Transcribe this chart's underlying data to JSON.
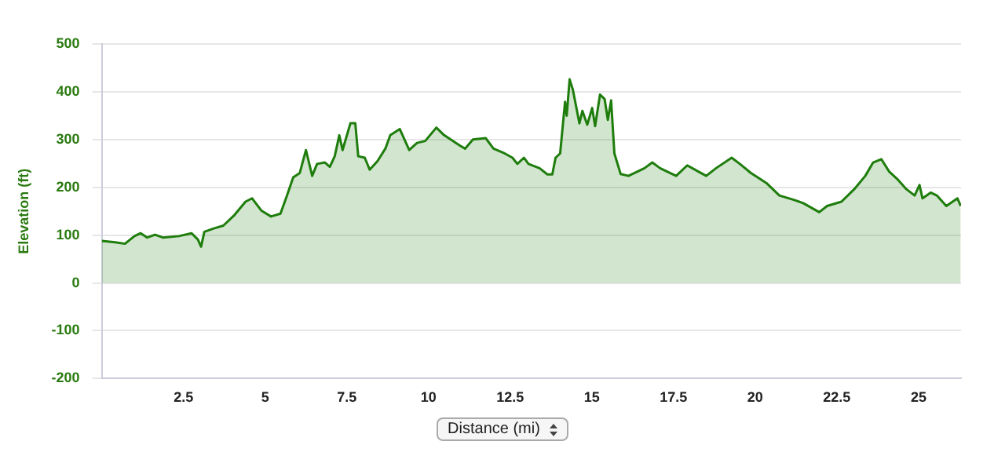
{
  "chart_data": {
    "type": "area",
    "xlabel": "Distance (mi)",
    "ylabel": "Elevation (ft)",
    "x": [
      0,
      0.41,
      0.71,
      1.0,
      1.19,
      1.39,
      1.63,
      1.87,
      2.36,
      2.75,
      2.94,
      3.04,
      3.14,
      3.43,
      3.72,
      4.06,
      4.4,
      4.6,
      4.89,
      5.18,
      5.47,
      5.67,
      5.86,
      6.06,
      6.25,
      6.44,
      6.59,
      6.83,
      6.98,
      7.13,
      7.27,
      7.37,
      7.61,
      7.76,
      7.85,
      8.05,
      8.2,
      8.44,
      8.68,
      8.83,
      9.12,
      9.41,
      9.65,
      9.9,
      10.24,
      10.48,
      10.97,
      11.12,
      11.36,
      11.75,
      11.99,
      12.33,
      12.57,
      12.72,
      12.92,
      13.06,
      13.4,
      13.64,
      13.79,
      13.89,
      14.03,
      14.18,
      14.23,
      14.32,
      14.42,
      14.62,
      14.71,
      14.86,
      15.01,
      15.1,
      15.25,
      15.39,
      15.49,
      15.59,
      15.69,
      15.88,
      16.12,
      16.61,
      16.85,
      17.09,
      17.58,
      17.92,
      18.26,
      18.5,
      18.8,
      19.28,
      19.53,
      19.87,
      20.36,
      20.74,
      21.18,
      21.47,
      21.96,
      22.2,
      22.64,
      23.03,
      23.37,
      23.61,
      23.86,
      24.1,
      24.34,
      24.63,
      24.88,
      25.03,
      25.12,
      25.37,
      25.56,
      25.85,
      26.19,
      26.29
    ],
    "series": [
      {
        "color": "#1e7d0c",
        "values": [
          88,
          85,
          82,
          98,
          104,
          95,
          101,
          95,
          98,
          104,
          91,
          76,
          107,
          114,
          120,
          142,
          170,
          177,
          151,
          139,
          145,
          183,
          221,
          230,
          278,
          224,
          249,
          252,
          243,
          265,
          309,
          278,
          334,
          334,
          265,
          262,
          237,
          255,
          281,
          309,
          322,
          278,
          293,
          297,
          325,
          309,
          287,
          281,
          300,
          303,
          281,
          271,
          262,
          249,
          262,
          249,
          240,
          227,
          227,
          262,
          271,
          379,
          350,
          426,
          404,
          334,
          360,
          331,
          366,
          328,
          394,
          385,
          341,
          382,
          271,
          228,
          224,
          240,
          252,
          240,
          224,
          246,
          233,
          224,
          240,
          262,
          249,
          230,
          208,
          183,
          174,
          167,
          148,
          161,
          170,
          196,
          224,
          252,
          259,
          233,
          218,
          196,
          183,
          205,
          177,
          189,
          183,
          161,
          177,
          161
        ]
      }
    ],
    "xlim": [
      0,
      26.3
    ],
    "xticks": [
      2.5,
      5,
      7.5,
      10,
      12.5,
      15,
      17.5,
      20,
      22.5,
      25
    ],
    "ylim": [
      -200,
      500
    ],
    "yticks": [
      -200,
      -100,
      0,
      100,
      200,
      300,
      400,
      500
    ],
    "grid": "y",
    "legend": false,
    "marker": "none"
  }
}
